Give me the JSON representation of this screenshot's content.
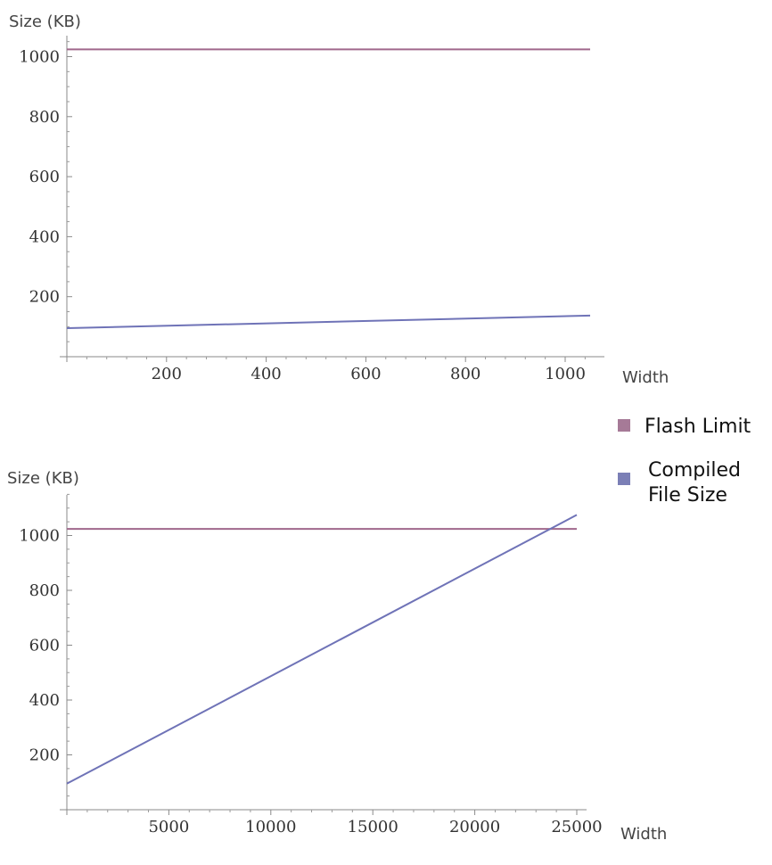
{
  "chart_data": [
    {
      "type": "line",
      "ylabel": "Size (KB)",
      "xlabel": "Width",
      "xlim": [
        0,
        1070
      ],
      "ylim": [
        0,
        1100
      ],
      "x_ticks": [
        200,
        400,
        600,
        800,
        1000
      ],
      "y_ticks": [
        200,
        400,
        600,
        800,
        1000
      ],
      "series": [
        {
          "name": "Flash Limit",
          "color": "#a0688c",
          "x": [
            0,
            1050
          ],
          "values": [
            1024,
            1024
          ]
        },
        {
          "name": "Compiled File Size",
          "color": "#6f73b7",
          "x": [
            0,
            1050
          ],
          "values": [
            95,
            137
          ]
        }
      ]
    },
    {
      "type": "line",
      "ylabel": "Size (KB)",
      "xlabel": "Width",
      "xlim": [
        0,
        25500
      ],
      "ylim": [
        0,
        1150
      ],
      "x_ticks": [
        5000,
        10000,
        15000,
        20000,
        25000
      ],
      "y_ticks": [
        200,
        400,
        600,
        800,
        1000
      ],
      "series": [
        {
          "name": "Flash Limit",
          "color": "#a0688c",
          "x": [
            0,
            25000
          ],
          "values": [
            1024,
            1024
          ]
        },
        {
          "name": "Compiled File Size",
          "color": "#6f73b7",
          "x": [
            0,
            25000
          ],
          "values": [
            95,
            1075
          ]
        }
      ]
    }
  ],
  "legend": {
    "items": [
      {
        "label": "Flash Limit",
        "color": "#a67a97"
      },
      {
        "label": "Compiled File Size",
        "lines": [
          "Compiled",
          "File Size"
        ],
        "color": "#7b7fb6"
      }
    ]
  }
}
